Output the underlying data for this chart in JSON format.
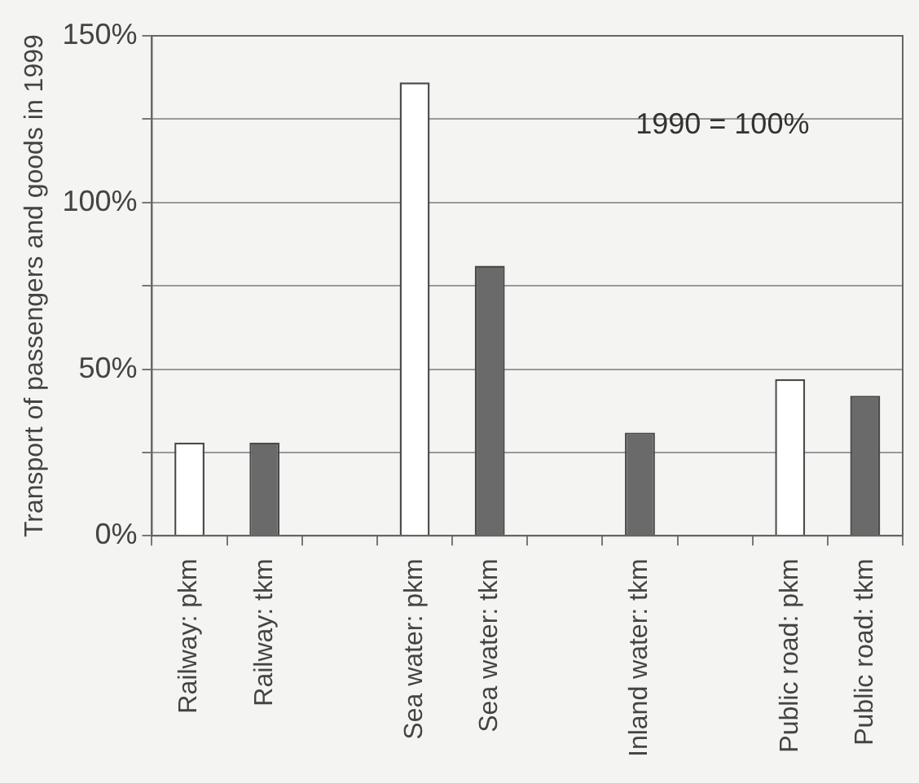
{
  "chart_data": {
    "type": "bar",
    "ylabel": "Transport of passengers and goods in 1999",
    "categories": [
      "Railway: pkm",
      "Railway: tkm",
      null,
      "Sea water: pkm",
      "Sea water: tkm",
      null,
      "Inland water: tkm",
      null,
      "Public road: pkm",
      "Public road: tkm"
    ],
    "values": [
      28,
      28,
      null,
      136,
      81,
      null,
      31,
      null,
      47,
      42
    ],
    "colors": [
      "#ffffff",
      "#6a6a6a",
      null,
      "#ffffff",
      "#6a6a6a",
      null,
      "#6a6a6a",
      null,
      "#ffffff",
      "#6a6a6a"
    ],
    "ylim": [
      0,
      150
    ],
    "yticks": [
      {
        "value": 0,
        "label": "0%"
      },
      {
        "value": 25,
        "label": null
      },
      {
        "value": 50,
        "label": "50%"
      },
      {
        "value": 75,
        "label": null
      },
      {
        "value": 100,
        "label": "100%"
      },
      {
        "value": 125,
        "label": null
      },
      {
        "value": 150,
        "label": "150%"
      }
    ],
    "grid": "y",
    "legend": false,
    "annotations": [
      "1990 = 100%"
    ]
  }
}
